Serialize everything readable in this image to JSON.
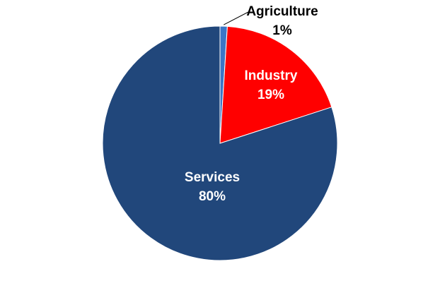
{
  "chart_data": {
    "type": "pie",
    "categories": [
      "Agriculture",
      "Industry",
      "Services"
    ],
    "values": [
      1,
      19,
      80
    ],
    "value_labels": [
      "1%",
      "19%",
      "80%"
    ],
    "colors": [
      "#3b76c6",
      "#ff0000",
      "#21477b"
    ]
  }
}
